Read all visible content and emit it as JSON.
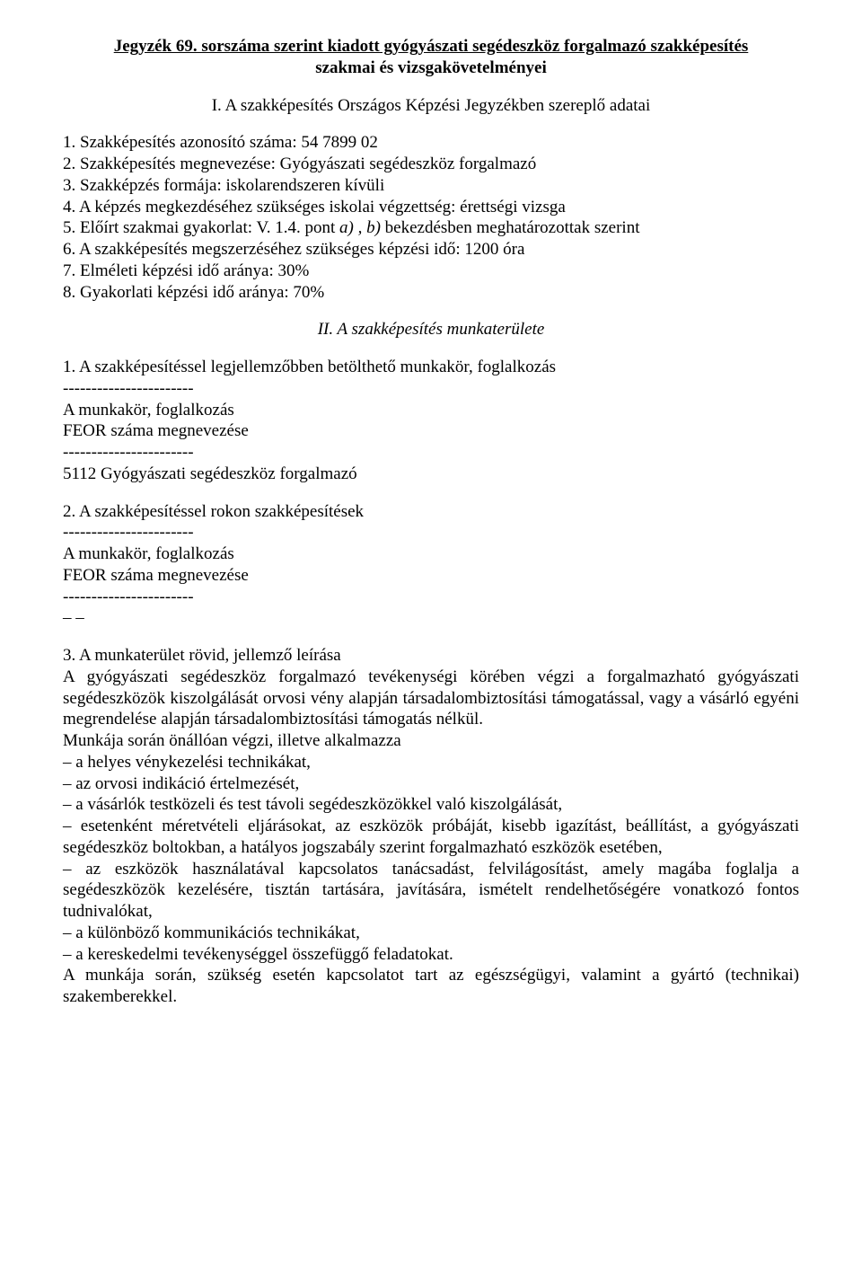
{
  "title": {
    "line1": "Jegyzék 69. sorszáma szerint kiadott gyógyászati segédeszköz forgalmazó szakképesítés",
    "line2": "szakmai és vizsgakövetelményei"
  },
  "section1_heading": "I. A szakképesítés Országos Képzési Jegyzékben szereplő adatai",
  "s1": {
    "l1": "1. Szakképesítés azonosító száma: 54 7899 02",
    "l2": "2. Szakképesítés megnevezése: Gyógyászati segédeszköz forgalmazó",
    "l3": "3. Szakképzés formája: iskolarendszeren kívüli",
    "l4": "4. A képzés megkezdéséhez szükséges iskolai végzettség: érettségi vizsga",
    "l5_pre": "5. Előírt szakmai gyakorlat: V. 1.4. pont ",
    "l5_ab": "a) , b)",
    "l5_post": " bekezdésben meghatározottak szerint",
    "l6": "6. A szakképesítés megszerzéséhez szükséges képzési idő: 1200 óra",
    "l7": "7. Elméleti képzési idő aránya: 30%",
    "l8": "8. Gyakorlati képzési idő aránya: 70%"
  },
  "section2_heading": "II. A szakképesítés munkaterülete",
  "s2": {
    "p1": "1. A szakképesítéssel legjellemzőbben betölthető munkakör, foglalkozás",
    "dashline": "-----------------------",
    "mk": "A munkakör, foglalkozás",
    "feor": "FEOR száma megnevezése",
    "row1": "5112 Gyógyászati segédeszköz forgalmazó",
    "p2": "2. A szakképesítéssel rokon szakképesítések",
    "empty": "– –",
    "p3": "3. A munkaterület rövid, jellemző leírása",
    "d1": "A gyógyászati segédeszköz forgalmazó tevékenységi körében végzi a forgalmazható gyógyászati segédeszközök kiszolgálását orvosi vény alapján társadalombiztosítási támogatással, vagy a vásárló egyéni megrendelése alapján társadalombiztosítási támogatás nélkül.",
    "d2": "Munkája során önállóan végzi, illetve alkalmazza",
    "b1": "– a helyes vénykezelési technikákat,",
    "b2": "– az orvosi indikáció értelmezését,",
    "b3": "– a vásárlók testközeli és test távoli segédeszközökkel való kiszolgálását,",
    "b4": "– esetenként méretvételi eljárásokat, az eszközök próbáját, kisebb igazítást, beállítást, a gyógyászati segédeszköz boltokban, a hatályos jogszabály szerint forgalmazható eszközök esetében,",
    "b5": "– az eszközök használatával kapcsolatos tanácsadást, felvilágosítást, amely magába foglalja a segédeszközök kezelésére, tisztán tartására, javítására, ismételt rendelhetőségére vonatkozó fontos tudnivalókat,",
    "b6": "– a különböző kommunikációs technikákat,",
    "b7": "– a kereskedelmi tevékenységgel összefüggő feladatokat.",
    "d3": "A munkája során, szükség esetén kapcsolatot tart az egészségügyi, valamint a gyártó (technikai) szakemberekkel."
  }
}
